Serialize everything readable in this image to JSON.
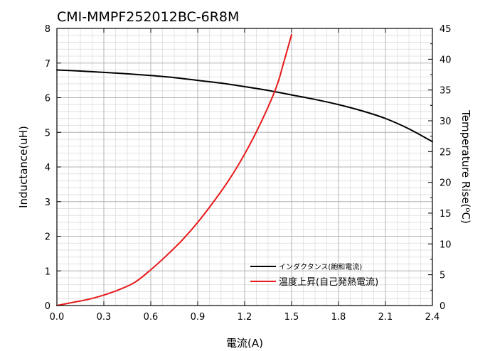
{
  "chart_data": {
    "type": "line",
    "title": "CMI-MMPF252012BC-6R8M",
    "xlabel": "電流(A)",
    "ylabel": "Inductance(uH)",
    "y2label": "Temperature Rise(°C)",
    "y2label_main": "Temperature Rise(",
    "y2label_sup": "o",
    "y2label_end": "C)",
    "xlim": [
      0,
      2.4
    ],
    "ylim": [
      0,
      8
    ],
    "y2lim": [
      0,
      45
    ],
    "xticks": [
      "0.0",
      "0.3",
      "0.6",
      "0.9",
      "1.2",
      "1.5",
      "1.8",
      "2.1",
      "2.4"
    ],
    "yticks": [
      "0",
      "1",
      "2",
      "3",
      "4",
      "5",
      "6",
      "7",
      "8"
    ],
    "y2ticks": [
      "0",
      "5",
      "10",
      "15",
      "20",
      "25",
      "30",
      "35",
      "40",
      "45"
    ],
    "grid": true,
    "legend_position": "bottom-right",
    "series": [
      {
        "name": "インダクタンス(飽和電流)",
        "axis": "left",
        "color": "#000000",
        "x": [
          0.0,
          0.15,
          0.3,
          0.45,
          0.6,
          0.75,
          0.9,
          1.05,
          1.2,
          1.35,
          1.5,
          1.65,
          1.8,
          1.95,
          2.1,
          2.25,
          2.4
        ],
        "y": [
          6.8,
          6.77,
          6.73,
          6.69,
          6.64,
          6.58,
          6.5,
          6.42,
          6.32,
          6.21,
          6.08,
          5.95,
          5.8,
          5.62,
          5.4,
          5.1,
          4.73
        ]
      },
      {
        "name": "温度上昇(自己発熱電流)",
        "axis": "right",
        "color": "#e8191a",
        "x": [
          0.0,
          0.1,
          0.2,
          0.3,
          0.4,
          0.5,
          0.6,
          0.7,
          0.8,
          0.9,
          1.0,
          1.1,
          1.2,
          1.3,
          1.4,
          1.45,
          1.5
        ],
        "y": [
          0.0,
          0.5,
          1.0,
          1.7,
          2.6,
          3.8,
          5.8,
          8.1,
          10.6,
          13.5,
          16.8,
          20.4,
          24.6,
          29.5,
          35.3,
          39.5,
          44.0
        ]
      }
    ]
  }
}
